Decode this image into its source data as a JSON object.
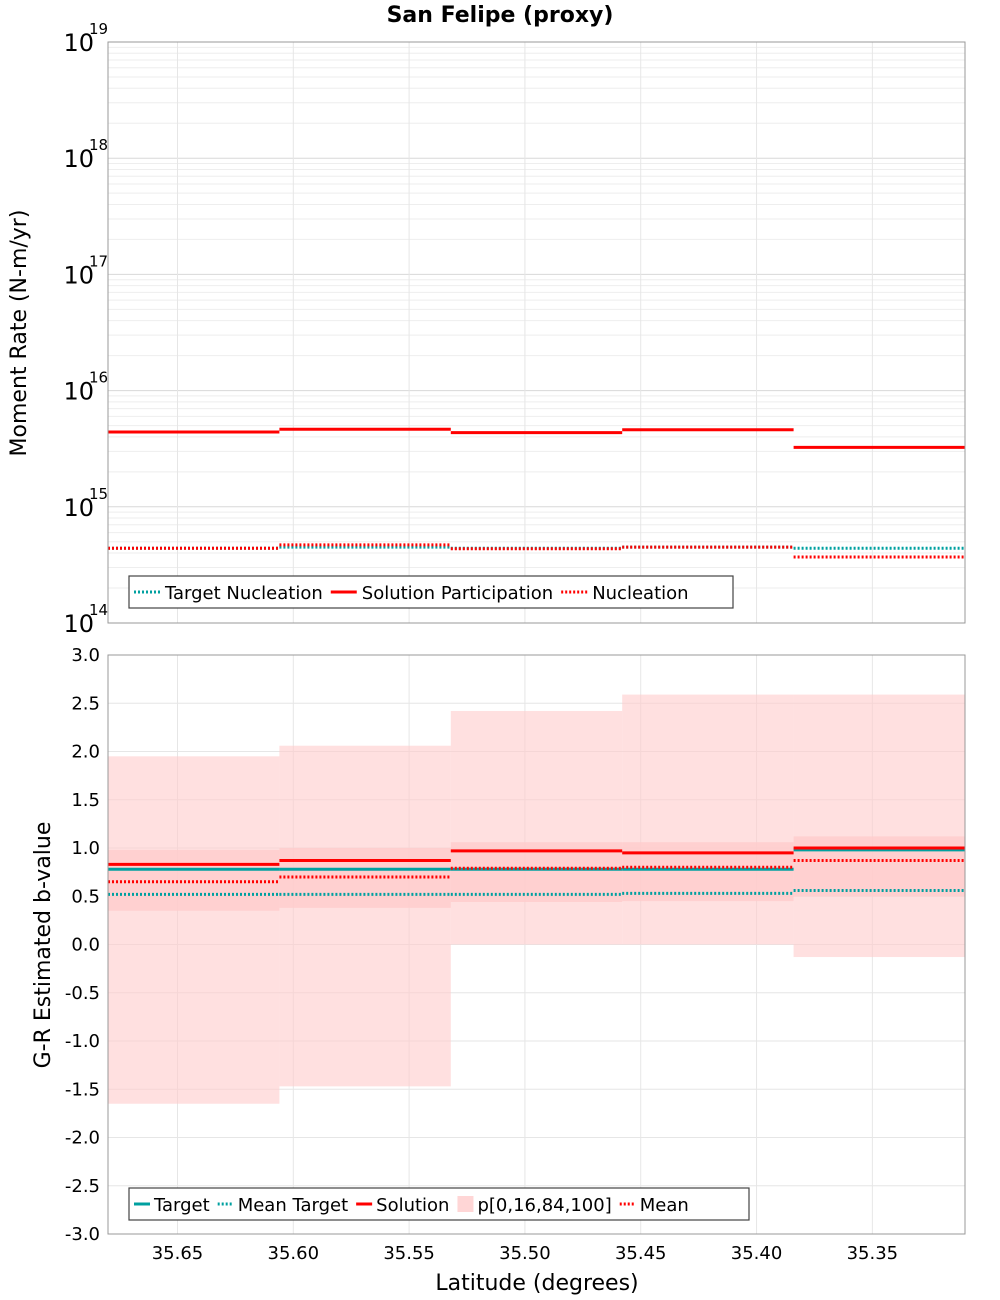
{
  "chart_data": [
    {
      "type": "line",
      "panel": "top",
      "title": "San Felipe (proxy)",
      "ylabel": "Moment Rate (N-m/yr)",
      "yscale": "log",
      "ylim": [
        100000000000000.0,
        1e+19
      ],
      "y_ticks": [
        {
          "base": "10",
          "exp": "14"
        },
        {
          "base": "10",
          "exp": "15"
        },
        {
          "base": "10",
          "exp": "16"
        },
        {
          "base": "10",
          "exp": "17"
        },
        {
          "base": "10",
          "exp": "18"
        },
        {
          "base": "10",
          "exp": "19"
        }
      ],
      "xlim": [
        35.68,
        35.31
      ],
      "x_edges": [
        35.68,
        35.606,
        35.532,
        35.458,
        35.384,
        35.31
      ],
      "grid": true,
      "legend_position": "bottom-left",
      "series": [
        {
          "name": "Target Nucleation",
          "color": "#00a0a0",
          "style": "dotted",
          "values": [
            440000000000000.0,
            450000000000000.0,
            440000000000000.0,
            450000000000000.0,
            440000000000000.0
          ]
        },
        {
          "name": "Solution Participation",
          "color": "#ff0000",
          "style": "solid",
          "values": [
            4400000000000000.0,
            4650000000000000.0,
            4350000000000000.0,
            4600000000000000.0,
            3250000000000000.0
          ]
        },
        {
          "name": "Nucleation",
          "color": "#ff0000",
          "style": "dotted",
          "values": [
            440000000000000.0,
            470000000000000.0,
            435000000000000.0,
            450000000000000.0,
            370000000000000.0
          ]
        }
      ]
    },
    {
      "type": "line",
      "panel": "bottom",
      "ylabel": "G-R Estimated b-value",
      "xlabel": "Latitude (degrees)",
      "ylim": [
        -3.0,
        3.0
      ],
      "y_ticks": [
        "-3.0",
        "-2.5",
        "-2.0",
        "-1.5",
        "-1.0",
        "-0.5",
        "0.0",
        "0.5",
        "1.0",
        "1.5",
        "2.0",
        "2.5",
        "3.0"
      ],
      "xlim": [
        35.68,
        35.31
      ],
      "x_ticks": [
        "35.65",
        "35.60",
        "35.55",
        "35.50",
        "35.45",
        "35.40",
        "35.35"
      ],
      "x_edges": [
        35.68,
        35.606,
        35.532,
        35.458,
        35.384,
        35.31
      ],
      "grid": true,
      "legend_position": "bottom-left",
      "band": {
        "name": "p[0,16,84,100]",
        "color": "#ffcccc",
        "p0": [
          -1.65,
          -1.47,
          0.0,
          0.0,
          -0.13
        ],
        "p16": [
          0.35,
          0.38,
          0.44,
          0.45,
          0.5
        ],
        "p84": [
          0.98,
          1.0,
          1.06,
          1.06,
          1.12
        ],
        "p100": [
          1.95,
          2.06,
          2.42,
          2.59,
          2.59
        ]
      },
      "series": [
        {
          "name": "Target",
          "color": "#00a0a0",
          "style": "solid",
          "values": [
            0.78,
            0.78,
            0.78,
            0.78,
            0.98
          ]
        },
        {
          "name": "Mean Target",
          "color": "#00a0a0",
          "style": "dotted",
          "values": [
            0.52,
            0.52,
            0.52,
            0.53,
            0.56
          ]
        },
        {
          "name": "Solution",
          "color": "#ff0000",
          "style": "solid",
          "values": [
            0.83,
            0.87,
            0.97,
            0.95,
            1.0
          ]
        },
        {
          "name": "Mean",
          "color": "#ff0000",
          "style": "dotted",
          "values": [
            0.65,
            0.7,
            0.79,
            0.8,
            0.87
          ]
        }
      ],
      "legend_order": [
        "Target",
        "Mean Target",
        "Solution",
        "p[0,16,84,100]",
        "Mean"
      ]
    }
  ]
}
